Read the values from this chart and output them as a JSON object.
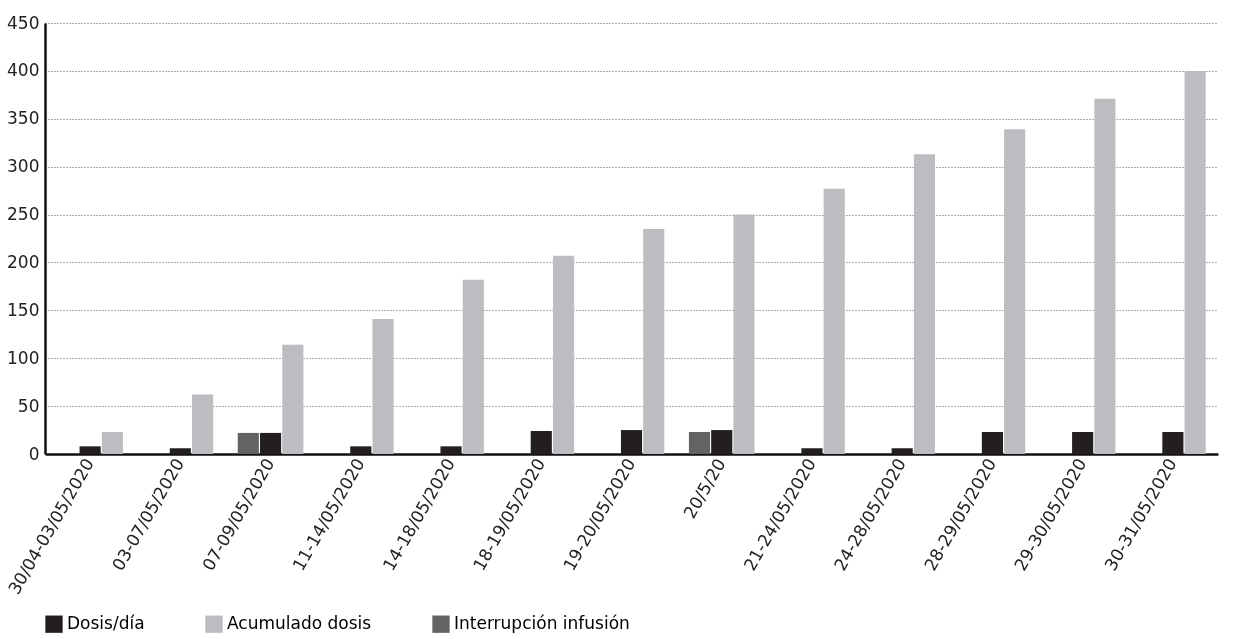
{
  "chart_data": {
    "type": "bar",
    "categories": [
      "30/04-03/05/2020",
      "03-07/05/2020",
      "07-09/05/2020",
      "11-14/05/2020",
      "14-18/05/2020",
      "18-19/05/2020",
      "19-20/05/2020",
      "20/5/20",
      "21-24/05/2020",
      "24-28/05/2020",
      "28-29/05/2020",
      "29-30/05/2020",
      "30-31/05/2020"
    ],
    "series": [
      {
        "name": "Dosis/día",
        "color": "#231f20",
        "values": [
          8,
          6,
          22,
          8,
          8,
          24,
          25,
          25,
          6,
          6,
          23,
          23,
          23
        ]
      },
      {
        "name": "Acumulado dosis",
        "color": "#bcbdc0",
        "values": [
          23,
          62,
          114,
          141,
          182,
          207,
          235,
          250,
          277,
          313,
          339,
          371,
          400
        ]
      },
      {
        "name": "Interrupción infusión",
        "color": "#636363",
        "values": [
          null,
          null,
          22,
          null,
          null,
          null,
          null,
          23,
          null,
          null,
          null,
          null,
          null
        ]
      }
    ],
    "ylim": [
      0,
      450
    ],
    "yticks": [
      0,
      50,
      100,
      150,
      200,
      250,
      300,
      350,
      400,
      450
    ],
    "grid": "y",
    "legend": "bottom"
  }
}
